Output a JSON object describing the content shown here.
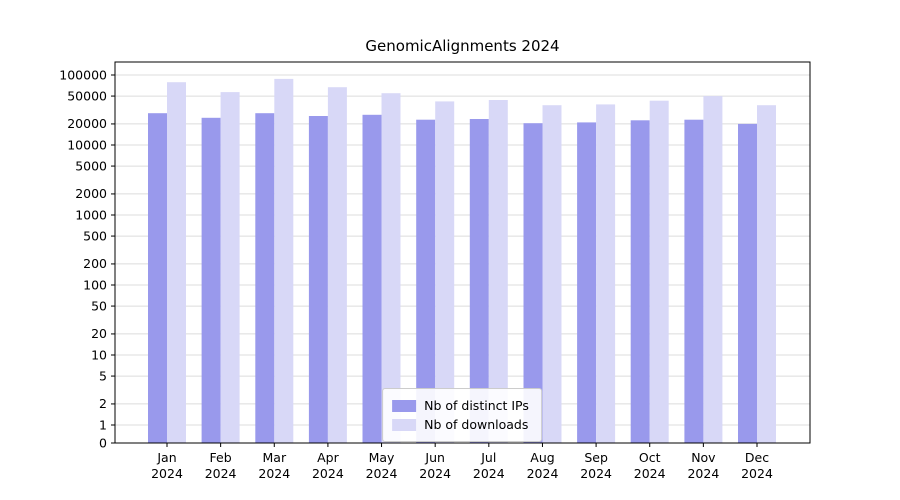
{
  "chart_data": {
    "type": "bar",
    "title": "GenomicAlignments 2024",
    "categories": [
      "Jan 2024",
      "Feb 2024",
      "Mar 2024",
      "Apr 2024",
      "May 2024",
      "Jun 2024",
      "Jul 2024",
      "Aug 2024",
      "Sep 2024",
      "Oct 2024",
      "Nov 2024",
      "Dec 2024"
    ],
    "series": [
      {
        "name": "Nb of distinct IPs",
        "color": "#9999ec",
        "values": [
          28500,
          24500,
          28500,
          26000,
          27000,
          23000,
          23500,
          20500,
          21000,
          22500,
          23000,
          20000
        ]
      },
      {
        "name": "Nb of downloads",
        "color": "#d8d8f7",
        "values": [
          79000,
          57000,
          88000,
          67000,
          55000,
          42000,
          44000,
          37000,
          38000,
          43000,
          50000,
          37000
        ]
      }
    ],
    "y_ticks": [
      0,
      1,
      2,
      5,
      10,
      20,
      50,
      100,
      200,
      500,
      1000,
      2000,
      5000,
      10000,
      20000,
      50000,
      100000
    ],
    "y_scale": "symlog",
    "ylim": [
      0,
      130000
    ],
    "xlabel": "",
    "ylabel": "",
    "grid": true,
    "grid_color": "#dcdcdc",
    "axis_color": "#000000",
    "legend_position": "lower center inside plot"
  }
}
